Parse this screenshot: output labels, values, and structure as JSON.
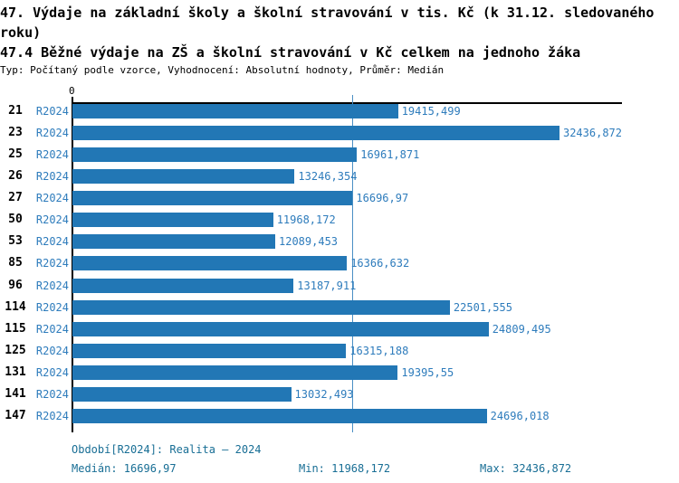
{
  "title": {
    "line1": "47. Výdaje na základní školy a školní stravování v tis. Kč (k 31.12. sledovaného roku)",
    "line2": "47.4 Běžné výdaje na ZŠ a školní stravování v Kč celkem na jednoho žáka",
    "meta": "Typ: Počítaný podle vzorce, Vyhodnocení: Absolutní hodnoty, Průměr: Medián"
  },
  "chart_data": {
    "type": "bar",
    "orientation": "horizontal",
    "series_label": "R2024",
    "categories": [
      "21",
      "23",
      "25",
      "26",
      "27",
      "50",
      "53",
      "85",
      "96",
      "114",
      "115",
      "125",
      "131",
      "141",
      "147"
    ],
    "values": [
      19415.499,
      32436.872,
      16961.871,
      13246.354,
      16696.97,
      11968.172,
      12089.453,
      16366.632,
      13187.911,
      22501.555,
      24809.495,
      16315.188,
      19395.55,
      13032.493,
      24696.018
    ],
    "value_labels": [
      "19415,499",
      "32436,872",
      "16961,871",
      "13246,354",
      "16696,97",
      "11968,172",
      "12089,453",
      "16366,632",
      "13187,911",
      "22501,555",
      "24809,495",
      "16315,188",
      "19395,55",
      "13032,493",
      "24696,018"
    ],
    "axis_zero_label": "0",
    "xlim": [
      0,
      32760
    ],
    "max_value": 32436.872,
    "median": 16696.97,
    "min": 11968.172,
    "max": 32436.872,
    "grid": false,
    "legend_position": "none",
    "bar_color": "#2277b5",
    "median_line_color": "#4a8fc4",
    "label_color": "#2e7cbc"
  },
  "footer": {
    "period": "Období[R2024]: Realita – 2024",
    "median": "Medián: 16696,97",
    "min": "Min: 11968,172",
    "max": "Max: 32436,872",
    "text_color": "#186e95"
  }
}
